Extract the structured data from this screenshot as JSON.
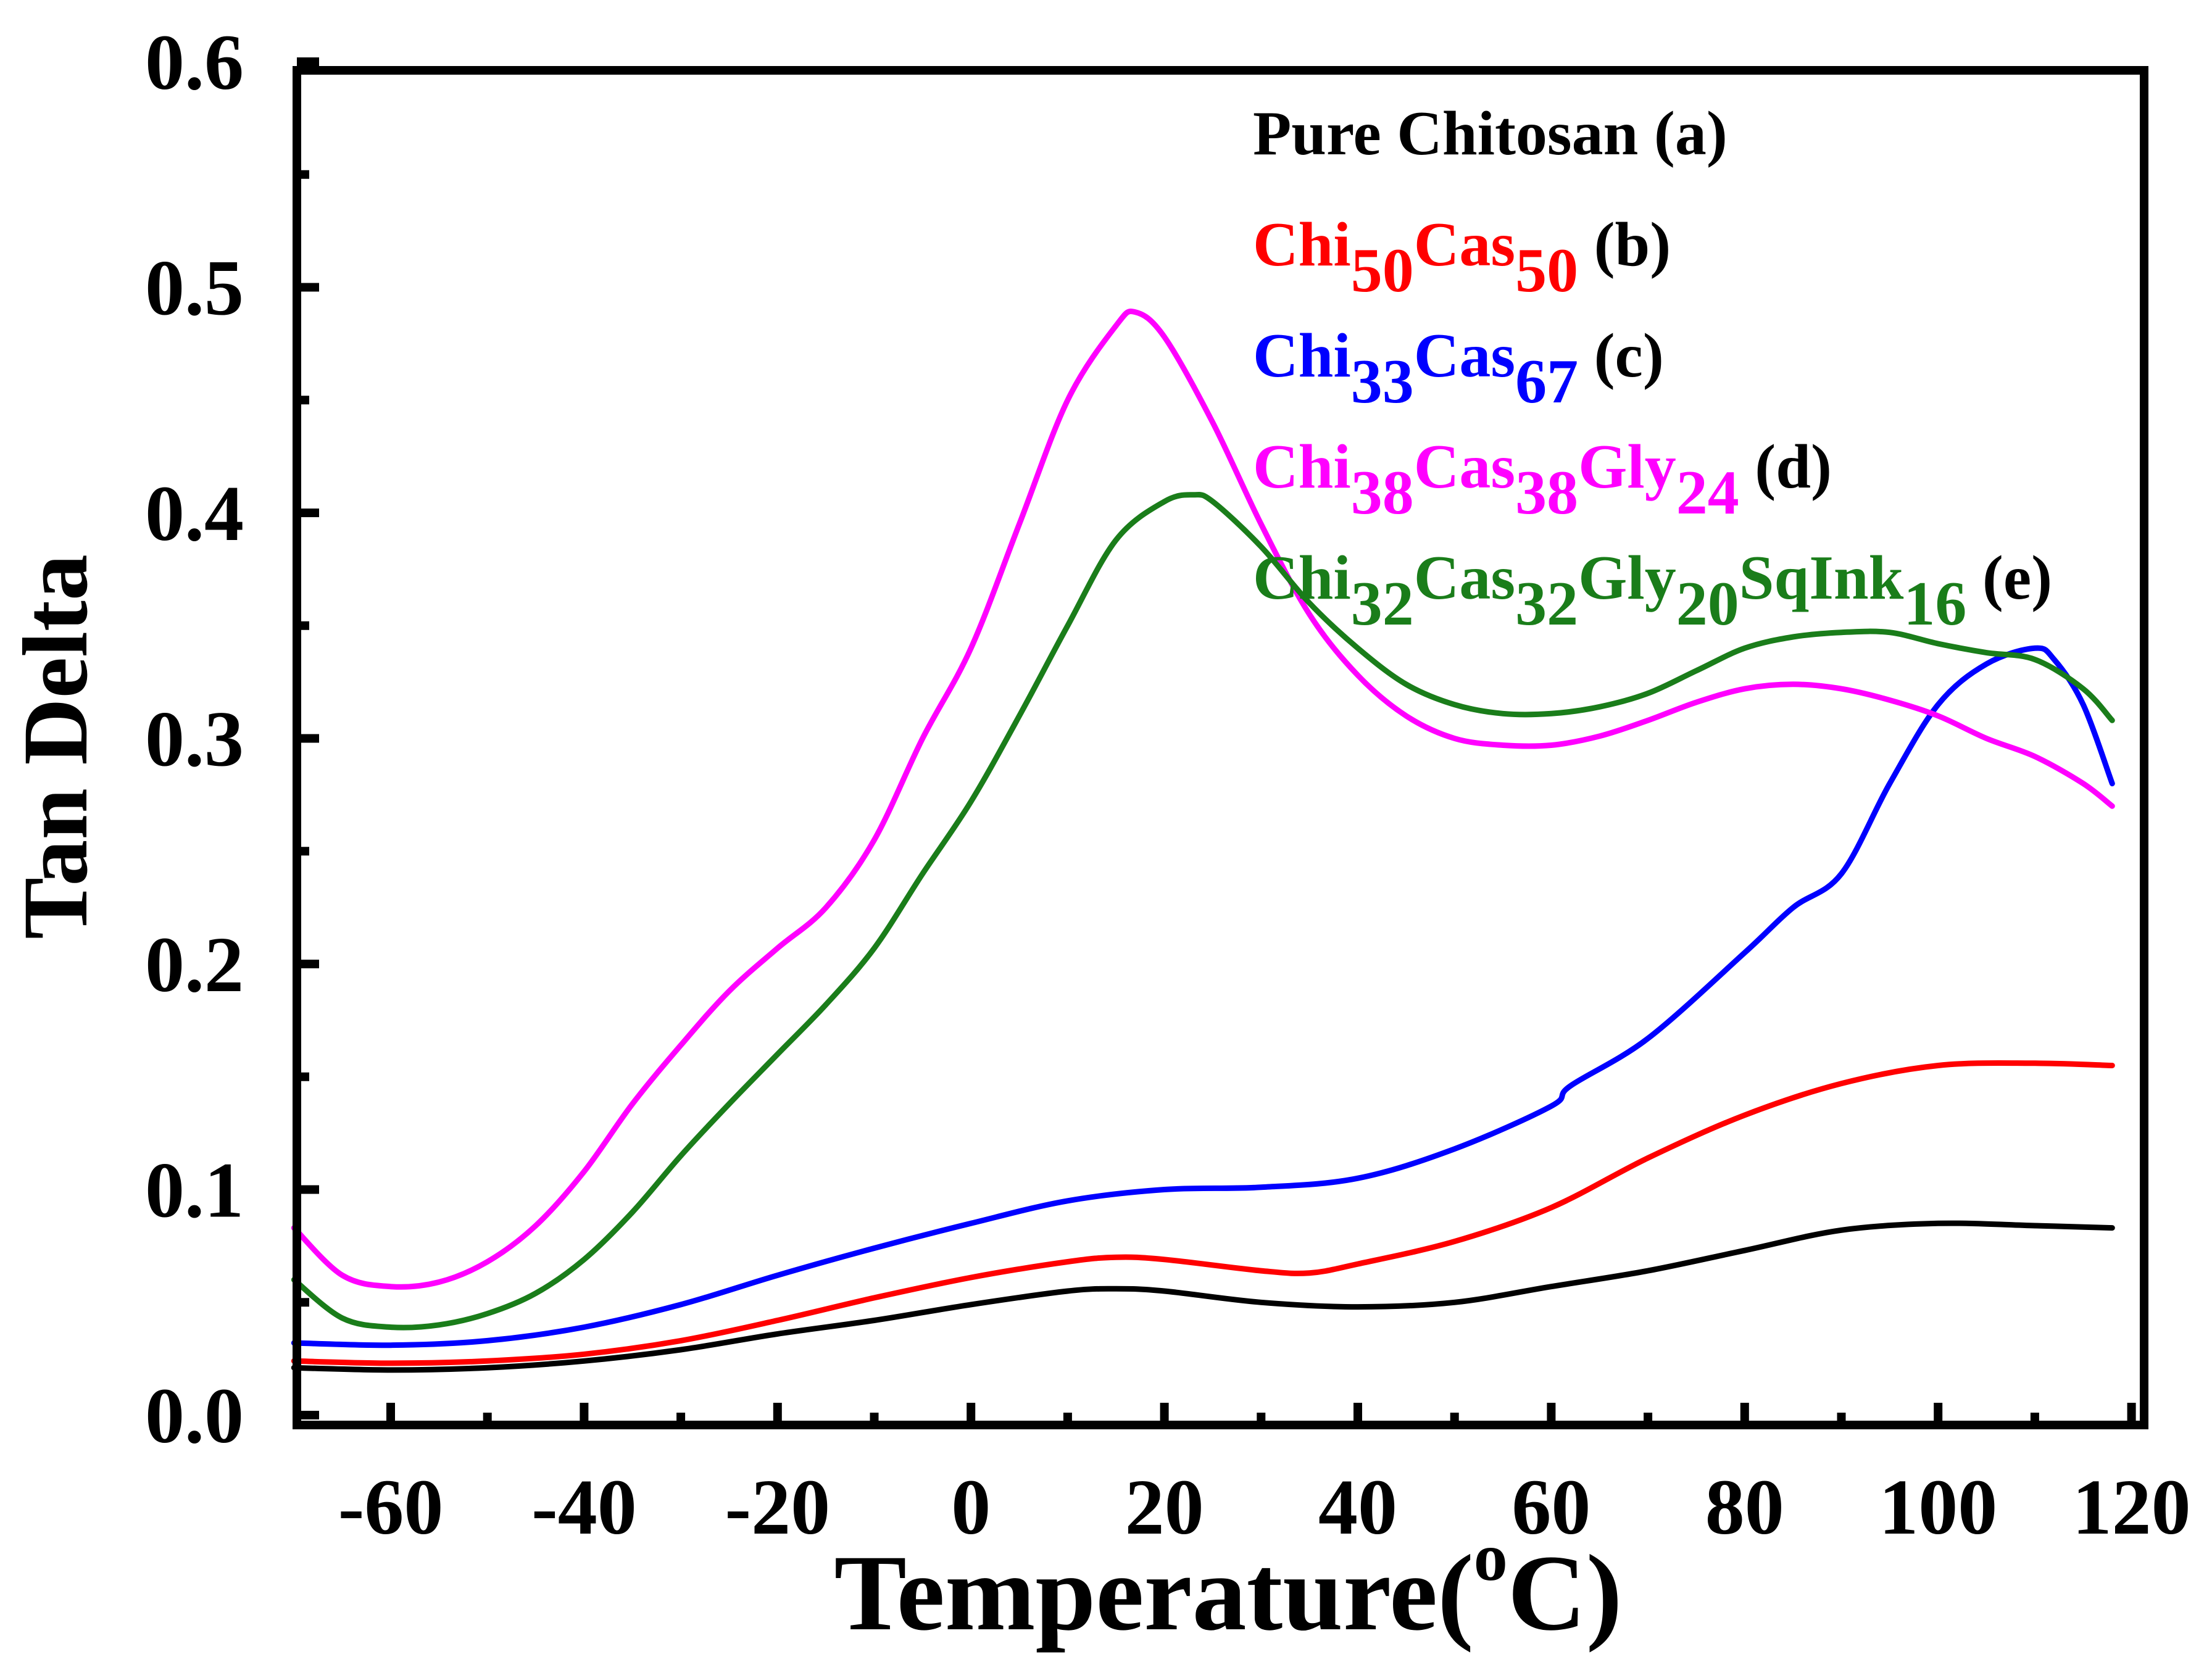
{
  "chart_data": {
    "type": "line",
    "title": "",
    "xlabel": "Temperature(oC)",
    "xlabel_main": "Temperature(",
    "xlabel_sup": "o",
    "xlabel_end": "C)",
    "ylabel": "Tan Delta",
    "xlim": [
      -70,
      120
    ],
    "ylim": [
      0.0,
      0.6
    ],
    "x_ticks": [
      -60,
      -40,
      -20,
      0,
      20,
      40,
      60,
      80,
      100,
      120
    ],
    "x_tick_labels": [
      "-60",
      "-40",
      "-20",
      "0",
      "20",
      "40",
      "60",
      "80",
      "100",
      "120"
    ],
    "y_ticks": [
      0.0,
      0.1,
      0.2,
      0.3,
      0.4,
      0.5,
      0.6
    ],
    "y_tick_labels": [
      "0.0",
      "0.1",
      "0.2",
      "0.3",
      "0.4",
      "0.5",
      "0.6"
    ],
    "grid": false,
    "legend_position": "top-right",
    "series": [
      {
        "name": "Pure Chitosan (a)",
        "color": "#000000",
        "legend_parts": [
          {
            "t": "Pure Chitosan",
            "sub": false
          }
        ],
        "legend_suffix": " (a)",
        "x": [
          -70,
          -60,
          -50,
          -40,
          -30,
          -20,
          -10,
          0,
          10,
          15,
          20,
          30,
          40,
          50,
          60,
          70,
          80,
          90,
          100,
          110,
          118
        ],
        "y": [
          0.021,
          0.02,
          0.021,
          0.024,
          0.029,
          0.036,
          0.042,
          0.049,
          0.055,
          0.056,
          0.055,
          0.05,
          0.048,
          0.05,
          0.057,
          0.064,
          0.073,
          0.082,
          0.085,
          0.084,
          0.083
        ]
      },
      {
        "name": "Chi50Cas50 (b)",
        "color": "#ff0000",
        "legend_parts": [
          {
            "t": "Chi",
            "sub": false
          },
          {
            "t": "50",
            "sub": true
          },
          {
            "t": "Cas",
            "sub": false
          },
          {
            "t": "50",
            "sub": true
          }
        ],
        "legend_suffix": " (b)",
        "x": [
          -70,
          -60,
          -50,
          -40,
          -30,
          -20,
          -10,
          0,
          10,
          15,
          20,
          30,
          35,
          40,
          50,
          60,
          70,
          80,
          90,
          100,
          110,
          118
        ],
        "y": [
          0.024,
          0.023,
          0.024,
          0.027,
          0.033,
          0.042,
          0.052,
          0.061,
          0.068,
          0.07,
          0.069,
          0.064,
          0.063,
          0.067,
          0.077,
          0.092,
          0.114,
          0.133,
          0.147,
          0.155,
          0.156,
          0.155
        ]
      },
      {
        "name": "Chi33Cas67 (c)",
        "color": "#0000ff",
        "legend_parts": [
          {
            "t": "Chi",
            "sub": false
          },
          {
            "t": "33",
            "sub": true
          },
          {
            "t": "Cas",
            "sub": false
          },
          {
            "t": "67",
            "sub": true
          }
        ],
        "legend_suffix": " (c)",
        "x": [
          -70,
          -60,
          -50,
          -40,
          -30,
          -20,
          -10,
          0,
          10,
          20,
          30,
          40,
          50,
          60,
          62,
          70,
          80,
          85,
          90,
          95,
          100,
          105,
          110,
          112,
          115,
          118
        ],
        "y": [
          0.032,
          0.031,
          0.033,
          0.039,
          0.049,
          0.062,
          0.074,
          0.085,
          0.095,
          0.1,
          0.101,
          0.105,
          0.118,
          0.137,
          0.146,
          0.167,
          0.205,
          0.225,
          0.24,
          0.28,
          0.315,
          0.333,
          0.34,
          0.335,
          0.315,
          0.28
        ]
      },
      {
        "name": "Chi38Cas38Gly24 (d)",
        "color": "#ff00ff",
        "legend_parts": [
          {
            "t": "Chi",
            "sub": false
          },
          {
            "t": "38",
            "sub": true
          },
          {
            "t": "Cas",
            "sub": false
          },
          {
            "t": "38",
            "sub": true
          },
          {
            "t": "Gly",
            "sub": false
          },
          {
            "t": "24",
            "sub": true
          }
        ],
        "legend_suffix": " (d)",
        "x": [
          -70,
          -65,
          -60,
          -55,
          -50,
          -45,
          -40,
          -35,
          -30,
          -25,
          -20,
          -15,
          -10,
          -5,
          0,
          5,
          10,
          15,
          17,
          20,
          25,
          30,
          35,
          40,
          45,
          50,
          55,
          60,
          65,
          70,
          75,
          80,
          85,
          90,
          95,
          100,
          105,
          110,
          115,
          118
        ],
        "y": [
          0.083,
          0.062,
          0.057,
          0.059,
          0.068,
          0.084,
          0.108,
          0.138,
          0.164,
          0.188,
          0.207,
          0.225,
          0.255,
          0.3,
          0.34,
          0.395,
          0.45,
          0.483,
          0.489,
          0.478,
          0.44,
          0.395,
          0.355,
          0.328,
          0.31,
          0.3,
          0.297,
          0.297,
          0.301,
          0.308,
          0.316,
          0.322,
          0.324,
          0.322,
          0.317,
          0.31,
          0.3,
          0.292,
          0.28,
          0.27
        ]
      },
      {
        "name": "Chi32Cas32Gly20SqInk16 (e)",
        "color": "#1a7d1a",
        "legend_parts": [
          {
            "t": "Chi",
            "sub": false
          },
          {
            "t": "32",
            "sub": true
          },
          {
            "t": "Cas",
            "sub": false
          },
          {
            "t": "32",
            "sub": true
          },
          {
            "t": "Gly",
            "sub": false
          },
          {
            "t": "20",
            "sub": true
          },
          {
            "t": "SqInk",
            "sub": false
          },
          {
            "t": "16",
            "sub": true
          }
        ],
        "legend_suffix": " (e)",
        "x": [
          -70,
          -65,
          -60,
          -55,
          -50,
          -45,
          -40,
          -35,
          -30,
          -25,
          -20,
          -15,
          -10,
          -5,
          0,
          5,
          10,
          15,
          20,
          23,
          25,
          30,
          35,
          40,
          45,
          50,
          55,
          60,
          65,
          70,
          75,
          80,
          85,
          90,
          95,
          100,
          105,
          110,
          115,
          118
        ],
        "y": [
          0.06,
          0.043,
          0.039,
          0.04,
          0.045,
          0.054,
          0.069,
          0.09,
          0.115,
          0.138,
          0.16,
          0.182,
          0.207,
          0.24,
          0.272,
          0.31,
          0.35,
          0.388,
          0.405,
          0.408,
          0.405,
          0.385,
          0.36,
          0.34,
          0.324,
          0.315,
          0.311,
          0.311,
          0.314,
          0.32,
          0.33,
          0.34,
          0.345,
          0.347,
          0.347,
          0.342,
          0.338,
          0.335,
          0.322,
          0.308
        ]
      }
    ]
  }
}
